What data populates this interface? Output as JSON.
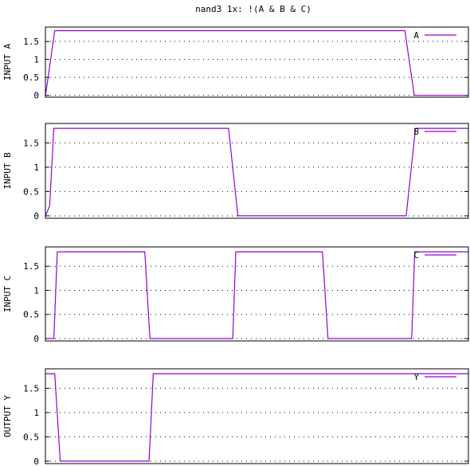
{
  "title": "nand3 1x: !(A & B & C)",
  "chart_data": [
    {
      "type": "line",
      "ylabel": "INPUT A",
      "ylim": [
        -0.05,
        1.9
      ],
      "yticks": [
        "0",
        "0.5",
        "1",
        "1.5"
      ],
      "grid": true,
      "legend_placement": "top-right",
      "series": [
        {
          "name": "A",
          "color": "#9400d3",
          "x": [
            0.0,
            0.004,
            0.022,
            0.85,
            0.872,
            1.0
          ],
          "y": [
            0.0,
            0.3,
            1.8,
            1.8,
            0.0,
            0.0
          ]
        }
      ]
    },
    {
      "type": "line",
      "ylabel": "INPUT B",
      "ylim": [
        -0.05,
        1.9
      ],
      "yticks": [
        "0",
        "0.5",
        "1",
        "1.5"
      ],
      "grid": true,
      "legend_placement": "top-right",
      "series": [
        {
          "name": "B",
          "color": "#9400d3",
          "x": [
            0.0,
            0.01,
            0.02,
            0.433,
            0.455,
            0.853,
            0.875,
            1.0
          ],
          "y": [
            0.0,
            0.2,
            1.8,
            1.8,
            0.0,
            0.0,
            1.8,
            1.8
          ]
        }
      ]
    },
    {
      "type": "line",
      "ylabel": "INPUT C",
      "ylim": [
        -0.05,
        1.9
      ],
      "yticks": [
        "0",
        "0.5",
        "1",
        "1.5"
      ],
      "grid": true,
      "legend_placement": "top-right",
      "series": [
        {
          "name": "C",
          "color": "#9400d3",
          "x": [
            0.0,
            0.02,
            0.028,
            0.235,
            0.247,
            0.443,
            0.45,
            0.655,
            0.668,
            0.866,
            0.873,
            1.0
          ],
          "y": [
            0.0,
            0.0,
            1.8,
            1.8,
            0.0,
            0.0,
            1.8,
            1.8,
            0.0,
            0.0,
            1.8,
            1.8
          ]
        }
      ]
    },
    {
      "type": "line",
      "ylabel": "OUTPUT Y",
      "ylim": [
        -0.05,
        1.9
      ],
      "yticks": [
        "0",
        "0.5",
        "1",
        "1.5"
      ],
      "grid": true,
      "legend_placement": "top-right",
      "series": [
        {
          "name": "Y",
          "color": "#9400d3",
          "x": [
            0.0,
            0.022,
            0.035,
            0.245,
            0.255,
            1.0
          ],
          "y": [
            1.8,
            1.8,
            0.0,
            0.0,
            1.8,
            1.8
          ]
        }
      ]
    }
  ]
}
